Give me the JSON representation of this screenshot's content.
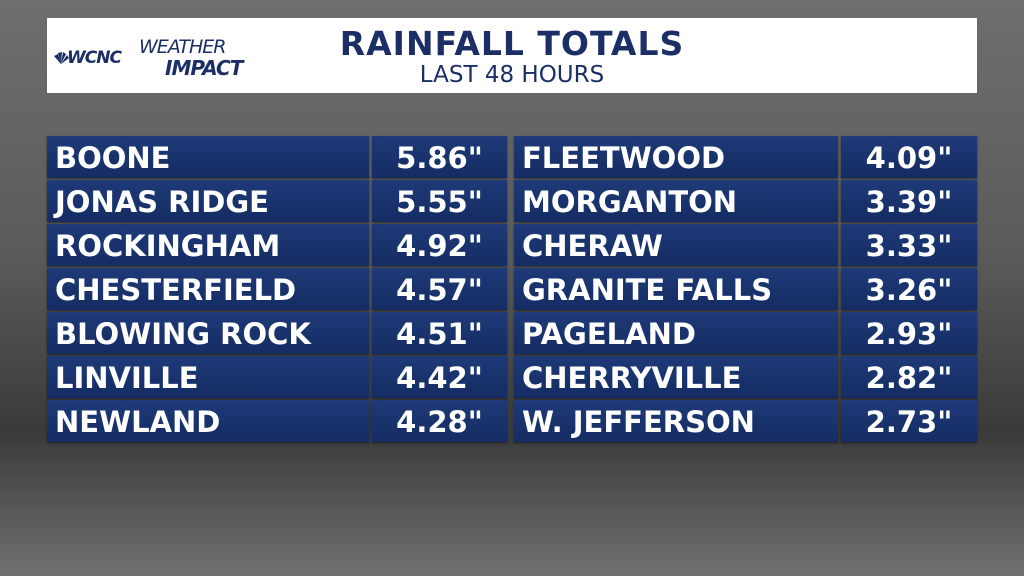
{
  "header": {
    "logo": {
      "station": "WCNC",
      "brand_top": "WEATHER",
      "brand_bottom": "IMPACT"
    },
    "title": "RAINFALL TOTALS",
    "subtitle": "LAST 48 HOURS"
  },
  "table": {
    "columns": [
      {
        "rows": [
          [
            "BOONE",
            "5.86\""
          ],
          [
            "JONAS RIDGE",
            "5.55\""
          ],
          [
            "ROCKINGHAM",
            "4.92\""
          ],
          [
            "CHESTERFIELD",
            "4.57\""
          ],
          [
            "BLOWING ROCK",
            "4.51\""
          ],
          [
            "LINVILLE",
            "4.42\""
          ],
          [
            "NEWLAND",
            "4.28\""
          ]
        ]
      },
      {
        "rows": [
          [
            "FLEETWOOD",
            "4.09\""
          ],
          [
            "MORGANTON",
            "3.39\""
          ],
          [
            "CHERAW",
            "3.33\""
          ],
          [
            "GRANITE FALLS",
            "3.26\""
          ],
          [
            "PAGELAND",
            "2.93\""
          ],
          [
            "CHERRYVILLE",
            "2.82\""
          ],
          [
            "W. JEFFERSON",
            "2.73\""
          ]
        ]
      }
    ]
  }
}
